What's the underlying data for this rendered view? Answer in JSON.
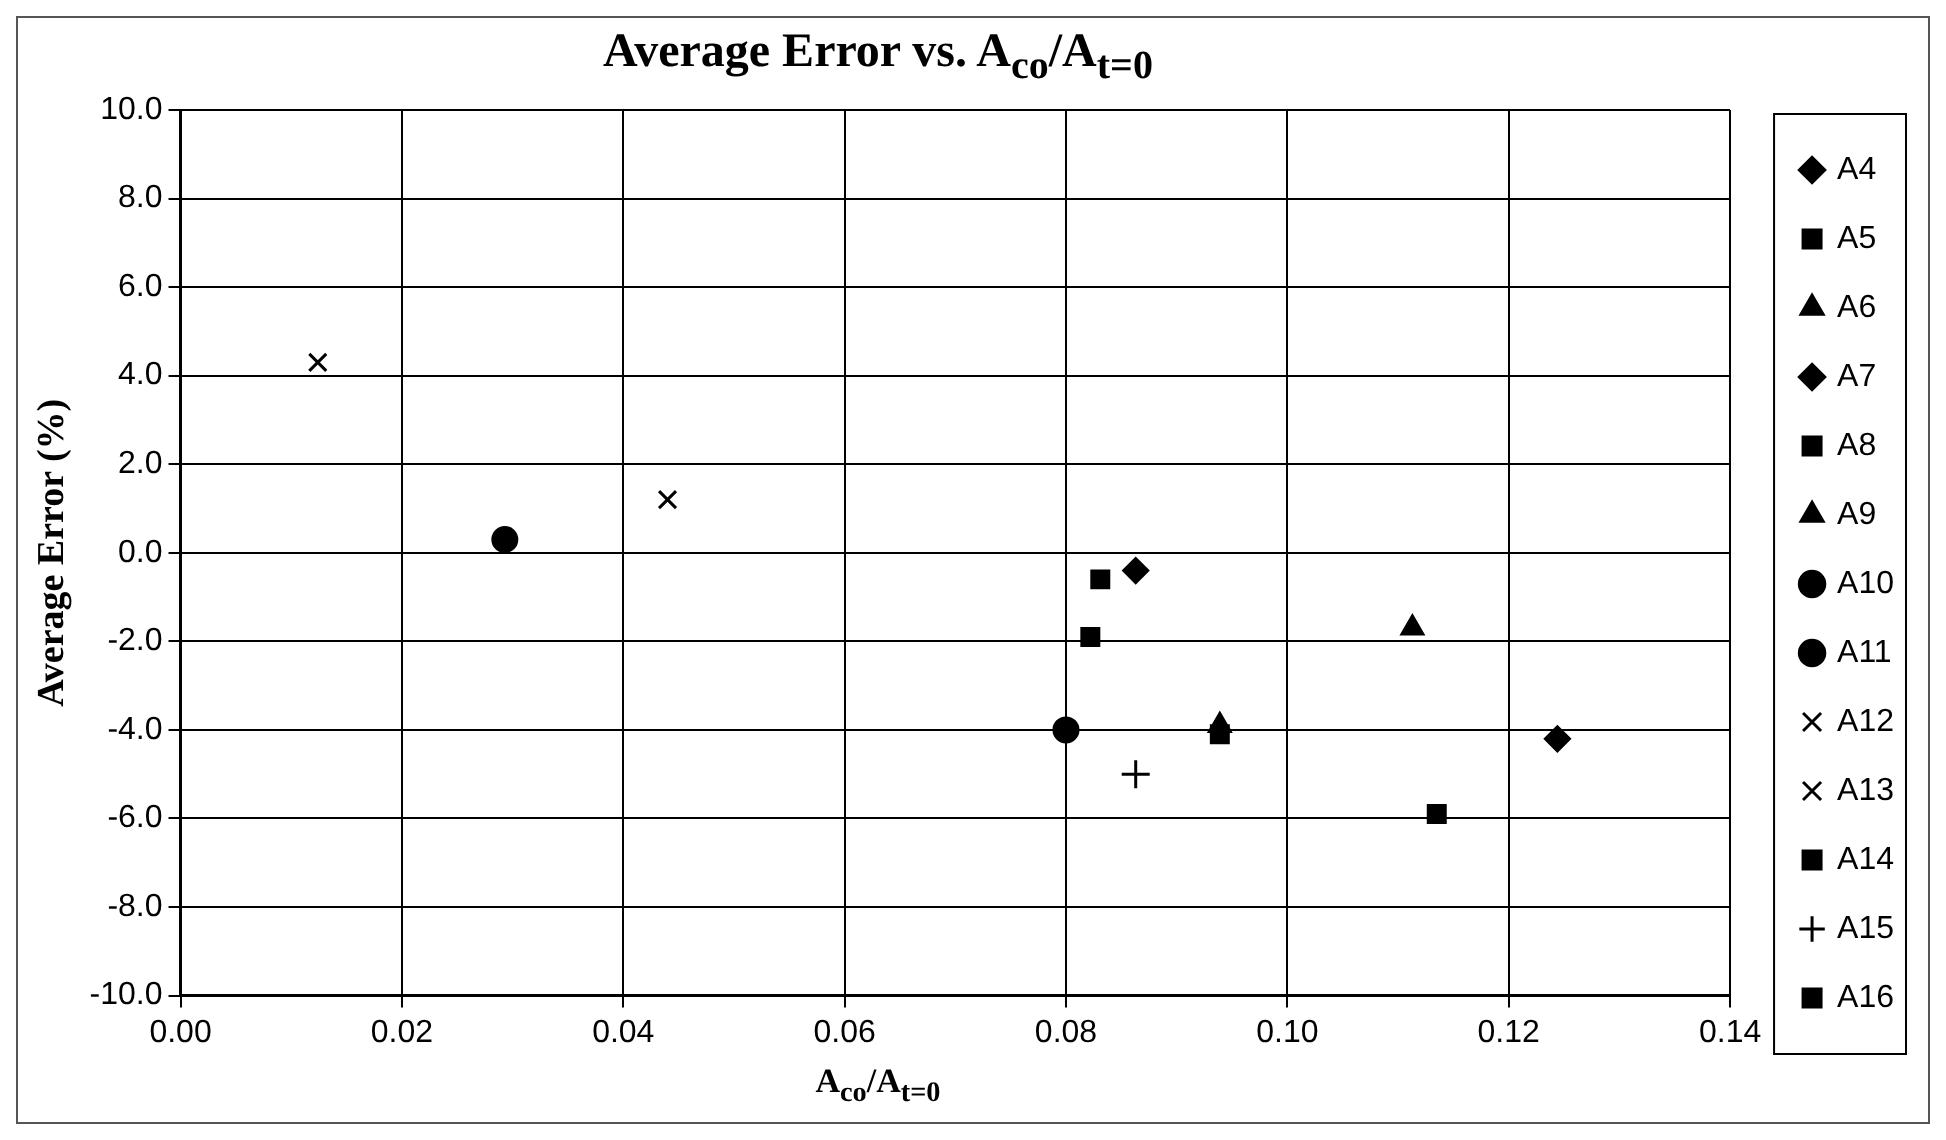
{
  "chart_data": {
    "type": "scatter",
    "title": "Average Error vs. A$_{co}$/A$_{t=0}$",
    "xlabel": "A$_{co}$/A$_{t=0}$",
    "ylabel": "Average Error (%)",
    "xlim": [
      0,
      0.14
    ],
    "xticks": [
      {
        "value": 0,
        "label": "0.00"
      },
      {
        "value": 0.02,
        "label": "0.02"
      },
      {
        "value": 0.04,
        "label": "0.04"
      },
      {
        "value": 0.06,
        "label": "0.06"
      },
      {
        "value": 0.08,
        "label": "0.08"
      },
      {
        "value": 0.1,
        "label": "0.10"
      },
      {
        "value": 0.12,
        "label": "0.12"
      },
      {
        "value": 0.14,
        "label": "0.14"
      }
    ],
    "ylim": [
      -10,
      10
    ],
    "yticks": [
      {
        "value": -10,
        "label": "-10.0"
      },
      {
        "value": -8,
        "label": "-8.0"
      },
      {
        "value": -6,
        "label": "-6.0"
      },
      {
        "value": -4,
        "label": "-4.0"
      },
      {
        "value": -2,
        "label": "-2.0"
      },
      {
        "value": 0,
        "label": "0.0"
      },
      {
        "value": 2,
        "label": "2.0"
      },
      {
        "value": 4,
        "label": "4.0"
      },
      {
        "value": 6,
        "label": "6.0"
      },
      {
        "value": 8,
        "label": "8.0"
      },
      {
        "value": 10,
        "label": "10.0"
      }
    ],
    "grid": true,
    "legend": "right",
    "series": [
      {
        "name": "A4",
        "color": "#000000",
        "marker": "diamond",
        "x": [
          0.0863
        ],
        "values": [
          -0.4
        ]
      },
      {
        "name": "A5",
        "color": "#000000",
        "marker": "square",
        "x": [
          0.0831
        ],
        "values": [
          -0.6
        ]
      },
      {
        "name": "A6",
        "color": "#000000",
        "marker": "triangle",
        "x": [
          0.1113
        ],
        "values": [
          -1.7
        ]
      },
      {
        "name": "A7",
        "color": "#000000",
        "marker": "diamond",
        "x": [
          0.1244
        ],
        "values": [
          -4.2
        ]
      },
      {
        "name": "A8",
        "color": "#000000",
        "marker": "square",
        "x": [
          0.0939
        ],
        "values": [
          -4.1
        ]
      },
      {
        "name": "A9",
        "color": "#000000",
        "marker": "triangle",
        "x": [
          0.0939
        ],
        "values": [
          -3.9
        ]
      },
      {
        "name": "A10",
        "color": "#000000",
        "marker": "circle",
        "x": [
          0.08
        ],
        "values": [
          -4.0
        ]
      },
      {
        "name": "A11",
        "color": "#000000",
        "marker": "circle",
        "x": [
          0.0293
        ],
        "values": [
          0.3
        ]
      },
      {
        "name": "A12",
        "color": "#000000",
        "marker": "cross",
        "x": [
          0.044
        ],
        "values": [
          1.2
        ]
      },
      {
        "name": "A13",
        "color": "#000000",
        "marker": "cross",
        "x": [
          0.0124
        ],
        "values": [
          4.3
        ]
      },
      {
        "name": "A14",
        "color": "#000000",
        "marker": "square",
        "x": [
          0.0822
        ],
        "values": [
          -1.9
        ]
      },
      {
        "name": "A15",
        "color": "#000000",
        "marker": "plus",
        "x": [
          0.0863
        ],
        "values": [
          -5.0
        ]
      },
      {
        "name": "A16",
        "color": "#000000",
        "marker": "square",
        "x": [
          0.1135
        ],
        "values": [
          -5.9
        ]
      }
    ]
  }
}
